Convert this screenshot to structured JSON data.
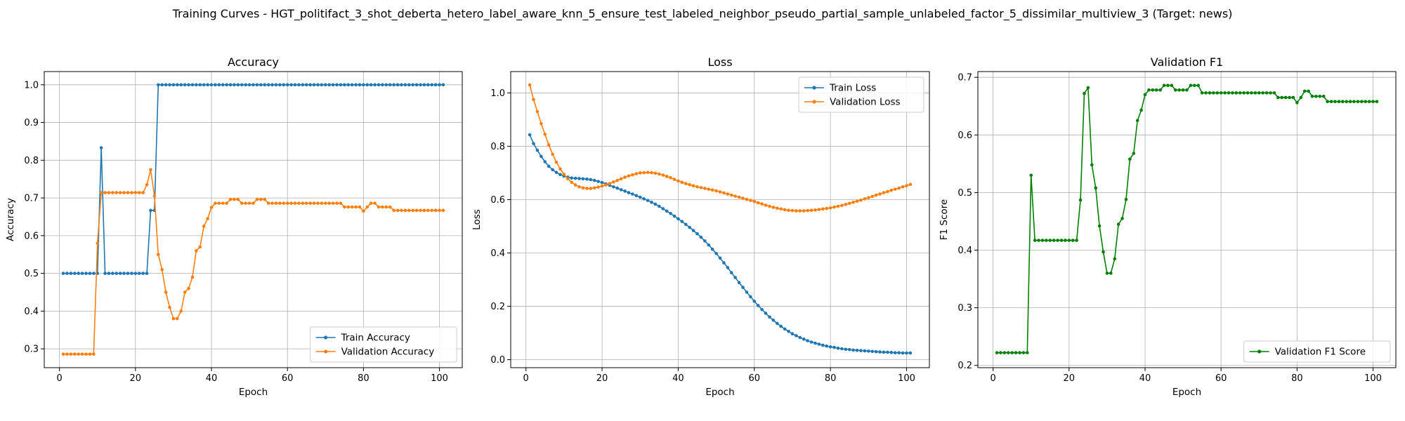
{
  "figure": {
    "suptitle": "Training Curves - HGT_politifact_3_shot_deberta_hetero_label_aware_knn_5_ensure_test_labeled_neighbor_pseudo_partial_sample_unlabeled_factor_5_dissimilar_multiview_3 (Target: news)"
  },
  "chart_data": [
    {
      "type": "line",
      "title": "Accuracy",
      "xlabel": "Epoch",
      "ylabel": "Accuracy",
      "xlim": [
        -4,
        106
      ],
      "ylim": [
        0.25,
        1.035
      ],
      "xticks": [
        0,
        20,
        40,
        60,
        80,
        100
      ],
      "yticks": [
        0.3,
        0.4,
        0.5,
        0.6,
        0.7,
        0.8,
        0.9,
        1.0
      ],
      "ytick_labels": [
        "0.3",
        "0.4",
        "0.5",
        "0.6",
        "0.7",
        "0.8",
        "0.9",
        "1.0"
      ],
      "grid": true,
      "legend_position": "lower-right",
      "series": [
        {
          "name": "Train Accuracy",
          "color": "#1f77b4",
          "values": [
            0.5,
            0.5,
            0.5,
            0.5,
            0.5,
            0.5,
            0.5,
            0.5,
            0.5,
            0.5,
            0.833,
            0.5,
            0.5,
            0.5,
            0.5,
            0.5,
            0.5,
            0.5,
            0.5,
            0.5,
            0.5,
            0.5,
            0.5,
            0.667,
            0.667,
            1.0,
            1.0,
            1.0,
            1.0,
            1.0,
            1.0,
            1.0,
            1.0,
            1.0,
            1.0,
            1.0,
            1.0,
            1.0,
            1.0,
            1.0,
            1.0,
            1.0,
            1.0,
            1.0,
            1.0,
            1.0,
            1.0,
            1.0,
            1.0,
            1.0,
            1.0,
            1.0,
            1.0,
            1.0,
            1.0,
            1.0,
            1.0,
            1.0,
            1.0,
            1.0,
            1.0,
            1.0,
            1.0,
            1.0,
            1.0,
            1.0,
            1.0,
            1.0,
            1.0,
            1.0,
            1.0,
            1.0,
            1.0,
            1.0,
            1.0,
            1.0,
            1.0,
            1.0,
            1.0,
            1.0,
            1.0,
            1.0,
            1.0,
            1.0,
            1.0,
            1.0,
            1.0,
            1.0,
            1.0,
            1.0,
            1.0,
            1.0,
            1.0,
            1.0,
            1.0,
            1.0,
            1.0,
            1.0,
            1.0,
            1.0,
            1.0
          ]
        },
        {
          "name": "Validation Accuracy",
          "color": "#ff7f0e",
          "values": [
            0.286,
            0.286,
            0.286,
            0.286,
            0.286,
            0.286,
            0.286,
            0.286,
            0.286,
            0.58,
            0.714,
            0.714,
            0.714,
            0.714,
            0.714,
            0.714,
            0.714,
            0.714,
            0.714,
            0.714,
            0.714,
            0.714,
            0.735,
            0.775,
            0.705,
            0.55,
            0.51,
            0.45,
            0.41,
            0.38,
            0.38,
            0.4,
            0.45,
            0.46,
            0.49,
            0.56,
            0.57,
            0.625,
            0.645,
            0.675,
            0.686,
            0.686,
            0.686,
            0.686,
            0.696,
            0.696,
            0.696,
            0.686,
            0.686,
            0.686,
            0.686,
            0.696,
            0.696,
            0.696,
            0.686,
            0.686,
            0.686,
            0.686,
            0.686,
            0.686,
            0.686,
            0.686,
            0.686,
            0.686,
            0.686,
            0.686,
            0.686,
            0.686,
            0.686,
            0.686,
            0.686,
            0.686,
            0.686,
            0.686,
            0.676,
            0.676,
            0.676,
            0.676,
            0.676,
            0.665,
            0.676,
            0.686,
            0.686,
            0.676,
            0.676,
            0.676,
            0.676,
            0.667,
            0.667,
            0.667,
            0.667,
            0.667,
            0.667,
            0.667,
            0.667,
            0.667,
            0.667,
            0.667,
            0.667,
            0.667,
            0.667
          ]
        }
      ]
    },
    {
      "type": "line",
      "title": "Loss",
      "xlabel": "Epoch",
      "ylabel": "Loss",
      "xlim": [
        -4,
        106
      ],
      "ylim": [
        -0.03,
        1.08
      ],
      "xticks": [
        0,
        20,
        40,
        60,
        80,
        100
      ],
      "yticks": [
        0.0,
        0.2,
        0.4,
        0.6,
        0.8,
        1.0
      ],
      "ytick_labels": [
        "0.0",
        "0.2",
        "0.4",
        "0.6",
        "0.8",
        "1.0"
      ],
      "grid": true,
      "legend_position": "upper-right",
      "series": [
        {
          "name": "Train Loss",
          "color": "#1f77b4",
          "values": [
            0.843,
            0.81,
            0.785,
            0.762,
            0.742,
            0.725,
            0.712,
            0.702,
            0.694,
            0.688,
            0.684,
            0.681,
            0.68,
            0.679,
            0.678,
            0.677,
            0.675,
            0.672,
            0.668,
            0.664,
            0.659,
            0.654,
            0.648,
            0.643,
            0.637,
            0.632,
            0.626,
            0.621,
            0.615,
            0.609,
            0.603,
            0.597,
            0.59,
            0.583,
            0.575,
            0.566,
            0.557,
            0.548,
            0.538,
            0.528,
            0.518,
            0.507,
            0.496,
            0.484,
            0.472,
            0.459,
            0.445,
            0.43,
            0.414,
            0.398,
            0.381,
            0.363,
            0.345,
            0.326,
            0.308,
            0.289,
            0.271,
            0.253,
            0.236,
            0.219,
            0.203,
            0.188,
            0.174,
            0.16,
            0.148,
            0.136,
            0.125,
            0.115,
            0.106,
            0.097,
            0.09,
            0.083,
            0.077,
            0.071,
            0.066,
            0.062,
            0.058,
            0.054,
            0.051,
            0.048,
            0.046,
            0.043,
            0.041,
            0.039,
            0.038,
            0.036,
            0.035,
            0.034,
            0.033,
            0.032,
            0.031,
            0.03,
            0.029,
            0.028,
            0.028,
            0.027,
            0.026,
            0.026,
            0.025,
            0.025,
            0.025
          ]
        },
        {
          "name": "Validation Loss",
          "color": "#ff7f0e",
          "values": [
            1.03,
            0.975,
            0.93,
            0.885,
            0.845,
            0.805,
            0.77,
            0.74,
            0.715,
            0.695,
            0.678,
            0.665,
            0.655,
            0.648,
            0.644,
            0.642,
            0.642,
            0.644,
            0.647,
            0.651,
            0.655,
            0.66,
            0.666,
            0.672,
            0.678,
            0.684,
            0.689,
            0.693,
            0.697,
            0.7,
            0.701,
            0.702,
            0.701,
            0.699,
            0.696,
            0.692,
            0.687,
            0.682,
            0.676,
            0.67,
            0.665,
            0.66,
            0.656,
            0.652,
            0.648,
            0.645,
            0.642,
            0.639,
            0.636,
            0.633,
            0.629,
            0.625,
            0.621,
            0.617,
            0.613,
            0.609,
            0.605,
            0.601,
            0.597,
            0.593,
            0.588,
            0.584,
            0.579,
            0.575,
            0.571,
            0.568,
            0.565,
            0.562,
            0.56,
            0.559,
            0.558,
            0.558,
            0.558,
            0.559,
            0.56,
            0.561,
            0.563,
            0.565,
            0.567,
            0.569,
            0.572,
            0.575,
            0.578,
            0.582,
            0.586,
            0.59,
            0.594,
            0.598,
            0.603,
            0.607,
            0.612,
            0.617,
            0.621,
            0.626,
            0.63,
            0.635,
            0.639,
            0.643,
            0.648,
            0.652,
            0.657
          ]
        }
      ]
    },
    {
      "type": "line",
      "title": "Validation F1",
      "xlabel": "Epoch",
      "ylabel": "F1 Score",
      "xlim": [
        -4,
        106
      ],
      "ylim": [
        0.196,
        0.71
      ],
      "xticks": [
        0,
        20,
        40,
        60,
        80,
        100
      ],
      "yticks": [
        0.2,
        0.3,
        0.4,
        0.5,
        0.6,
        0.7
      ],
      "ytick_labels": [
        "0.2",
        "0.3",
        "0.4",
        "0.5",
        "0.6",
        "0.7"
      ],
      "grid": true,
      "legend_position": "lower-right",
      "series": [
        {
          "name": "Validation F1 Score",
          "color": "#008000",
          "values": [
            0.222,
            0.222,
            0.222,
            0.222,
            0.222,
            0.222,
            0.222,
            0.222,
            0.222,
            0.53,
            0.417,
            0.417,
            0.417,
            0.417,
            0.417,
            0.417,
            0.417,
            0.417,
            0.417,
            0.417,
            0.417,
            0.417,
            0.487,
            0.672,
            0.682,
            0.548,
            0.508,
            0.442,
            0.397,
            0.36,
            0.36,
            0.385,
            0.445,
            0.455,
            0.488,
            0.558,
            0.568,
            0.625,
            0.643,
            0.67,
            0.678,
            0.678,
            0.678,
            0.678,
            0.686,
            0.686,
            0.686,
            0.678,
            0.678,
            0.678,
            0.678,
            0.686,
            0.686,
            0.686,
            0.673,
            0.673,
            0.673,
            0.673,
            0.673,
            0.673,
            0.673,
            0.673,
            0.673,
            0.673,
            0.673,
            0.673,
            0.673,
            0.673,
            0.673,
            0.673,
            0.673,
            0.673,
            0.673,
            0.673,
            0.665,
            0.665,
            0.665,
            0.665,
            0.665,
            0.656,
            0.665,
            0.676,
            0.676,
            0.667,
            0.667,
            0.667,
            0.667,
            0.658,
            0.658,
            0.658,
            0.658,
            0.658,
            0.658,
            0.658,
            0.658,
            0.658,
            0.658,
            0.658,
            0.658,
            0.658,
            0.658
          ]
        }
      ]
    }
  ]
}
